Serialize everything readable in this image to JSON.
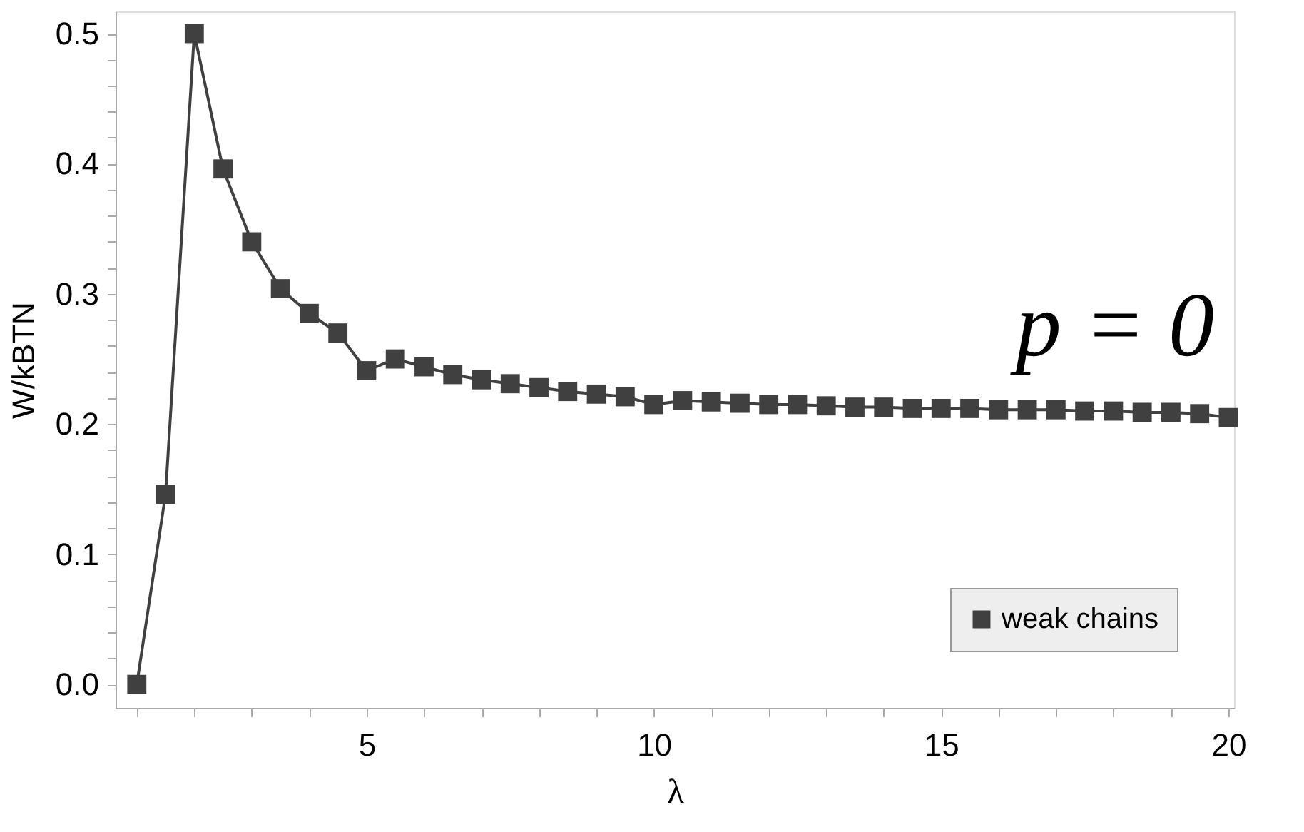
{
  "chart_data": {
    "type": "line",
    "xlabel": "λ",
    "ylabel": "W/kBTN",
    "x": [
      1,
      1.5,
      2,
      2.5,
      3,
      3.5,
      4,
      4.5,
      5,
      5.5,
      6,
      6.5,
      7,
      7.5,
      8,
      8.5,
      9,
      9.5,
      10,
      10.5,
      11,
      11.5,
      12,
      12.5,
      13,
      13.5,
      14,
      14.5,
      15,
      15.5,
      16,
      16.5,
      17,
      17.5,
      18,
      18.5,
      19,
      19.5,
      20
    ],
    "series": [
      {
        "name": "weak chains",
        "color": "#404040",
        "values": [
          0,
          0.146,
          0.5,
          0.396,
          0.34,
          0.304,
          0.285,
          0.27,
          0.241,
          0.25,
          0.244,
          0.238,
          0.234,
          0.231,
          0.228,
          0.225,
          0.223,
          0.221,
          0.215,
          0.218,
          0.217,
          0.216,
          0.215,
          0.215,
          0.214,
          0.213,
          0.213,
          0.212,
          0.212,
          0.212,
          0.211,
          0.211,
          0.211,
          0.21,
          0.21,
          0.209,
          0.209,
          0.208,
          0.205
        ]
      }
    ],
    "xlim": [
      0.63,
      20.1
    ],
    "ylim": [
      -0.018,
      0.517
    ],
    "xticks": [
      {
        "value": 1,
        "label": null
      },
      {
        "value": 2,
        "label": null
      },
      {
        "value": 3,
        "label": null
      },
      {
        "value": 4,
        "label": null
      },
      5,
      {
        "value": 6,
        "label": null
      },
      {
        "value": 7,
        "label": null
      },
      {
        "value": 8,
        "label": null
      },
      {
        "value": 9,
        "label": null
      },
      10,
      {
        "value": 11,
        "label": null
      },
      {
        "value": 12,
        "label": null
      },
      {
        "value": 13,
        "label": null
      },
      {
        "value": 14,
        "label": null
      },
      15,
      {
        "value": 16,
        "label": null
      },
      {
        "value": 17,
        "label": null
      },
      {
        "value": 18,
        "label": null
      },
      {
        "value": 19,
        "label": null
      },
      20
    ],
    "yticks": [
      {
        "value": 0,
        "label": "0.0"
      },
      {
        "value": 0.02,
        "label": null
      },
      {
        "value": 0.04,
        "label": null
      },
      {
        "value": 0.06,
        "label": null
      },
      {
        "value": 0.08,
        "label": null
      },
      0.1,
      {
        "value": 0.12,
        "label": null
      },
      {
        "value": 0.14,
        "label": null
      },
      {
        "value": 0.16,
        "label": null
      },
      {
        "value": 0.18,
        "label": null
      },
      0.2,
      {
        "value": 0.22,
        "label": null
      },
      {
        "value": 0.24,
        "label": null
      },
      {
        "value": 0.26,
        "label": null
      },
      {
        "value": 0.28,
        "label": null
      },
      0.3,
      {
        "value": 0.32,
        "label": null
      },
      {
        "value": 0.34,
        "label": null
      },
      {
        "value": 0.36,
        "label": null
      },
      {
        "value": 0.38,
        "label": null
      },
      0.4,
      {
        "value": 0.42,
        "label": null
      },
      {
        "value": 0.44,
        "label": null
      },
      {
        "value": 0.46,
        "label": null
      },
      {
        "value": 0.48,
        "label": null
      },
      0.5
    ],
    "annotations": [
      "p = 0"
    ],
    "marker": "square",
    "line_style": "solid",
    "grid": false,
    "legend": "bottom right"
  }
}
